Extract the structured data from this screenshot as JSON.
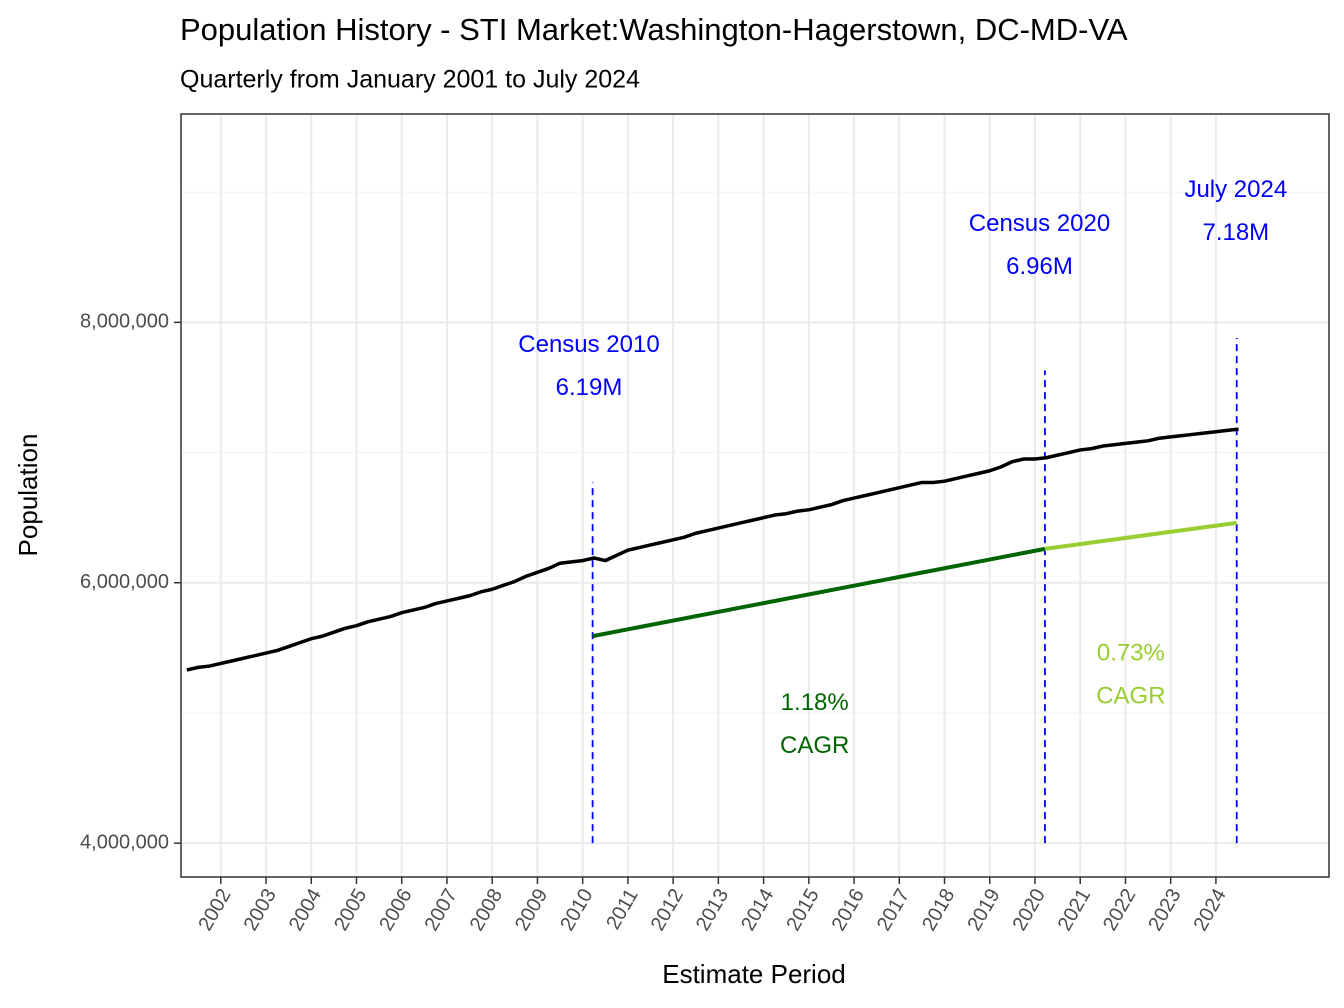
{
  "chart_data": {
    "type": "line",
    "title": "Population History - STI Market:Washington-Hagerstown, DC-MD-VA",
    "subtitle": "Quarterly from January 2001 to July 2024",
    "x_label": "Estimate Period",
    "y_label": "Population",
    "xlim": [
      2001.12,
      2026.5
    ],
    "ylim": [
      3740000,
      9600000
    ],
    "xticks": [
      2002,
      2003,
      2004,
      2005,
      2006,
      2007,
      2008,
      2009,
      2010,
      2011,
      2012,
      2013,
      2014,
      2015,
      2016,
      2017,
      2018,
      2019,
      2020,
      2021,
      2022,
      2023,
      2024
    ],
    "yticks": [
      {
        "value": 4000000,
        "label": "4,000,000"
      },
      {
        "value": 6000000,
        "label": "6,000,000"
      },
      {
        "value": 8000000,
        "label": "8,000,000"
      }
    ],
    "yminor": [
      5000000,
      7000000,
      9000000
    ],
    "grid": true,
    "series": [
      {
        "color": "#000000",
        "x": [
          2001.25,
          2001.5,
          2001.75,
          2002,
          2002.25,
          2002.5,
          2002.75,
          2003,
          2003.25,
          2003.5,
          2003.75,
          2004,
          2004.25,
          2004.5,
          2004.75,
          2005,
          2005.25,
          2005.5,
          2005.75,
          2006,
          2006.25,
          2006.5,
          2006.75,
          2007,
          2007.25,
          2007.5,
          2007.75,
          2008,
          2008.25,
          2008.5,
          2008.75,
          2009,
          2009.25,
          2009.5,
          2009.75,
          2010,
          2010.25,
          2010.5,
          2010.75,
          2011,
          2011.25,
          2011.5,
          2011.75,
          2012,
          2012.25,
          2012.5,
          2012.75,
          2013,
          2013.25,
          2013.5,
          2013.75,
          2014,
          2014.25,
          2014.5,
          2014.75,
          2015,
          2015.25,
          2015.5,
          2015.75,
          2016,
          2016.25,
          2016.5,
          2016.75,
          2017,
          2017.25,
          2017.5,
          2017.75,
          2018,
          2018.25,
          2018.5,
          2018.75,
          2019,
          2019.25,
          2019.5,
          2019.75,
          2020,
          2020.25,
          2020.5,
          2020.75,
          2021,
          2021.25,
          2021.5,
          2021.75,
          2022,
          2022.25,
          2022.5,
          2022.75,
          2023,
          2023.25,
          2023.5,
          2023.75,
          2024,
          2024.25,
          2024.5
        ],
        "values": [
          5330000,
          5350000,
          5360000,
          5380000,
          5400000,
          5420000,
          5440000,
          5460000,
          5480000,
          5510000,
          5540000,
          5570000,
          5590000,
          5620000,
          5650000,
          5670000,
          5700000,
          5720000,
          5740000,
          5770000,
          5790000,
          5810000,
          5840000,
          5860000,
          5880000,
          5900000,
          5930000,
          5950000,
          5980000,
          6010000,
          6050000,
          6080000,
          6110000,
          6150000,
          6160000,
          6170000,
          6190000,
          6170000,
          6210000,
          6250000,
          6270000,
          6290000,
          6310000,
          6330000,
          6350000,
          6380000,
          6400000,
          6420000,
          6440000,
          6460000,
          6480000,
          6500000,
          6520000,
          6530000,
          6550000,
          6560000,
          6580000,
          6600000,
          6630000,
          6650000,
          6670000,
          6690000,
          6710000,
          6730000,
          6750000,
          6770000,
          6770000,
          6780000,
          6800000,
          6820000,
          6840000,
          6860000,
          6890000,
          6930000,
          6950000,
          6950000,
          6960000,
          6980000,
          7000000,
          7020000,
          7030000,
          7050000,
          7060000,
          7070000,
          7080000,
          7090000,
          7110000,
          7120000,
          7130000,
          7140000,
          7150000,
          7160000,
          7170000,
          7180000
        ]
      },
      {
        "color": "#006400",
        "x": [
          2010.22,
          2020.22
        ],
        "values": [
          5590000,
          6260000
        ]
      },
      {
        "color": "#9acd32",
        "x": [
          2020.22,
          2024.46
        ],
        "values": [
          6260000,
          6460000
        ]
      }
    ],
    "vlines": [
      {
        "x": 2010.22,
        "ymin": 4000000,
        "ymax": 6770000,
        "color": "#0000ff"
      },
      {
        "x": 2020.22,
        "ymin": 4000000,
        "ymax": 7630000,
        "color": "#0000ff"
      },
      {
        "x": 2024.46,
        "ymin": 4000000,
        "ymax": 7880000,
        "color": "#0000ff"
      }
    ],
    "annotations": [
      {
        "x": 2010.14,
        "y": 7820000,
        "lines": [
          "Census 2010",
          "6.19M"
        ],
        "color": "#0000ff"
      },
      {
        "x": 2020.1,
        "y": 8750000,
        "lines": [
          "Census 2020",
          "6.96M"
        ],
        "color": "#0000ff"
      },
      {
        "x": 2024.44,
        "y": 9010000,
        "lines": [
          "July 2024",
          "7.18M"
        ],
        "color": "#0000ff"
      },
      {
        "x": 2015.13,
        "y": 5070000,
        "lines": [
          "1.18%",
          "CAGR"
        ],
        "color": "#006400"
      },
      {
        "x": 2022.12,
        "y": 5450000,
        "lines": [
          "0.73%",
          "CAGR"
        ],
        "color": "#9acd32"
      }
    ]
  }
}
